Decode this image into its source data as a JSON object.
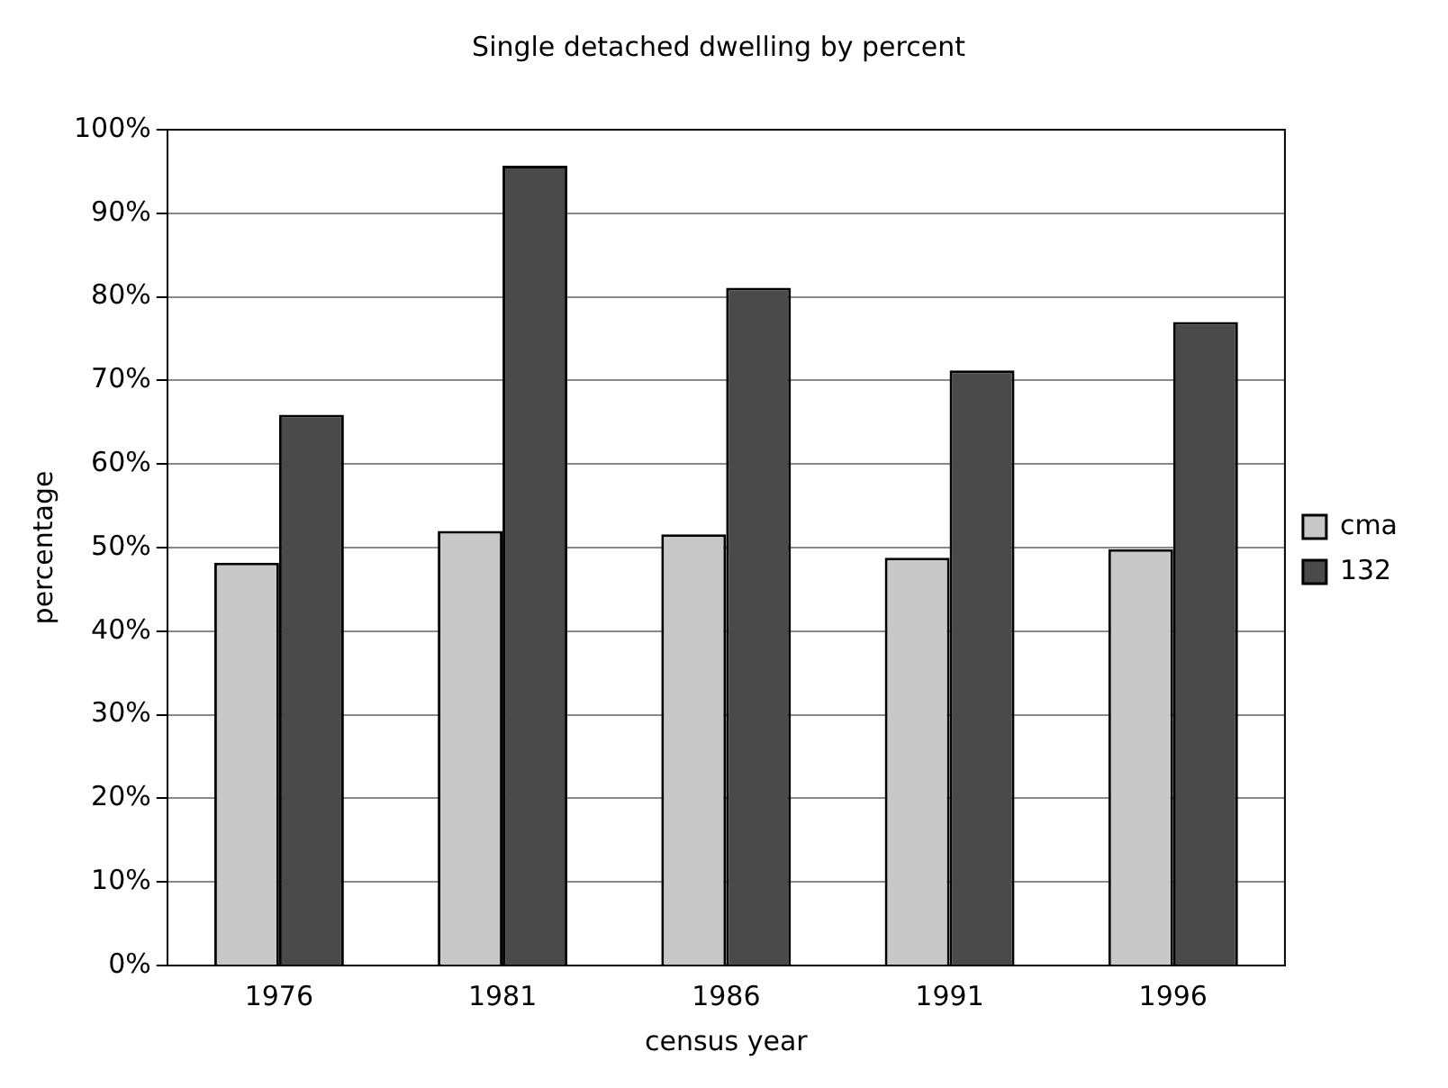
{
  "chart_data": {
    "type": "bar",
    "title": "Single detached dwelling by percent",
    "xlabel": "census year",
    "ylabel": "percentage",
    "categories": [
      "1976",
      "1981",
      "1986",
      "1991",
      "1996"
    ],
    "series": [
      {
        "name": "cma",
        "color": "#c8c8c8",
        "values": [
          48.2,
          52.0,
          51.6,
          48.8,
          49.8
        ]
      },
      {
        "name": "132",
        "color": "#4a4a4a",
        "values": [
          65.9,
          95.7,
          81.1,
          71.2,
          77.0
        ]
      }
    ],
    "ylim": [
      0,
      100
    ],
    "yticks": [
      {
        "value": 0,
        "label": "0%"
      },
      {
        "value": 10,
        "label": "10%"
      },
      {
        "value": 20,
        "label": "20%"
      },
      {
        "value": 30,
        "label": "30%"
      },
      {
        "value": 40,
        "label": "40%"
      },
      {
        "value": 50,
        "label": "50%"
      },
      {
        "value": 60,
        "label": "60%"
      },
      {
        "value": 70,
        "label": "70%"
      },
      {
        "value": 80,
        "label": "80%"
      },
      {
        "value": 90,
        "label": "90%"
      },
      {
        "value": 100,
        "label": "100%"
      }
    ],
    "grid": "y",
    "legend": "right"
  }
}
